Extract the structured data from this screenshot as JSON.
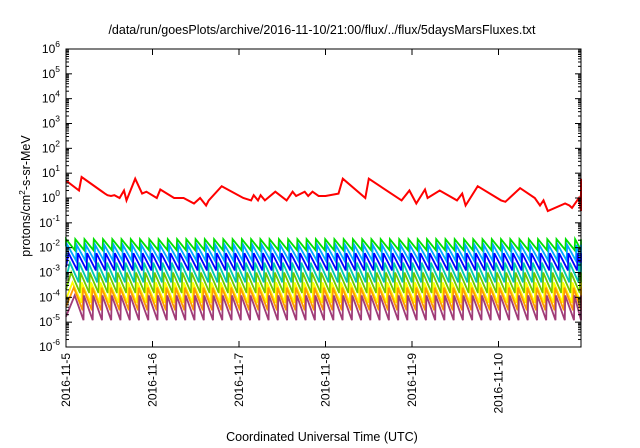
{
  "chart_data": {
    "type": "line",
    "title": "/data/run/goesPlots/archive/2016-11-10/21:00/flux/../flux/5daysMarsFluxes.txt",
    "xlabel": "Coordinated Universal Time (UTC)",
    "ylabel": "protons/cm2-s-sr-MeV",
    "ylabel_parts": {
      "pre": "protons/cm",
      "sup": "2",
      "post": "-s-sr-MeV"
    },
    "yscale": "log",
    "ylim_exp": [
      -6,
      6
    ],
    "y_ticks": [
      {
        "base": "10",
        "exp": "6"
      },
      {
        "base": "10",
        "exp": "5"
      },
      {
        "base": "10",
        "exp": "4"
      },
      {
        "base": "10",
        "exp": "3"
      },
      {
        "base": "10",
        "exp": "2"
      },
      {
        "base": "10",
        "exp": "1"
      },
      {
        "base": "10",
        "exp": "0"
      },
      {
        "base": "10",
        "exp": "-1"
      },
      {
        "base": "10",
        "exp": "-2"
      },
      {
        "base": "10",
        "exp": "-3"
      },
      {
        "base": "10",
        "exp": "-4"
      },
      {
        "base": "10",
        "exp": "-5"
      },
      {
        "base": "10",
        "exp": "-6"
      }
    ],
    "x_ticks": [
      "2016-11-5",
      "2016-11-6",
      "2016-11-7",
      "2016-11-8",
      "2016-11-9",
      "2016-11-10"
    ],
    "x_day_range": [
      0,
      6.3
    ],
    "grid": false,
    "legend": "none",
    "series": [
      {
        "color": "#ff0000",
        "t": [
          0,
          0.15,
          0.18,
          0.4,
          0.45,
          0.48,
          0.52,
          0.56,
          0.62,
          0.67,
          0.7,
          0.8,
          0.88,
          0.93,
          1.05,
          1.09,
          1.25,
          1.36,
          1.48,
          1.55,
          1.62,
          1.65,
          1.8,
          2.05,
          2.14,
          2.17,
          2.22,
          2.25,
          2.3,
          2.42,
          2.55,
          2.62,
          2.66,
          2.76,
          2.8,
          2.85,
          2.92,
          3.0,
          3.15,
          3.2,
          3.46,
          3.5,
          3.88,
          3.97,
          4.05,
          4.15,
          4.18,
          4.32,
          4.52,
          4.58,
          4.62,
          4.76,
          5.03,
          5.08,
          5.25,
          5.42,
          5.48,
          5.52,
          5.57,
          5.77,
          5.82,
          5.85,
          5.93,
          6.0,
          6.05,
          6.1,
          6.2,
          6.3
        ],
        "y": [
          5,
          2,
          7,
          2,
          1.5,
          1.3,
          1.2,
          1.3,
          1,
          2,
          0.8,
          6,
          1.5,
          1.8,
          1,
          2.2,
          1,
          1,
          0.6,
          1,
          0.5,
          0.8,
          3,
          1,
          0.8,
          1.3,
          0.8,
          1.3,
          0.8,
          1.8,
          0.8,
          1.8,
          1.2,
          1.8,
          1.2,
          1.8,
          1.2,
          1.2,
          1.5,
          6,
          1,
          6,
          0.8,
          2,
          0.6,
          2.2,
          1,
          2,
          0.8,
          1.5,
          0.5,
          3,
          0.8,
          0.7,
          2.5,
          1,
          0.5,
          0.8,
          0.3,
          0.6,
          0.5,
          0.4,
          1,
          0.3,
          1.5,
          1.2,
          6,
          4.5
        ]
      },
      {
        "color": "#00e000",
        "lo": 0.008,
        "hi": 0.022,
        "period": 0.107,
        "phase": 0.0
      },
      {
        "color": "#00a8ff",
        "lo": 0.003,
        "hi": 0.013,
        "period": 0.107,
        "phase": 0.015
      },
      {
        "color": "#0000ff",
        "lo": 0.0012,
        "hi": 0.006,
        "period": 0.107,
        "phase": 0.03
      },
      {
        "color": "#00c8b0",
        "lo": 0.0004,
        "hi": 0.0025,
        "period": 0.107,
        "phase": 0.045
      },
      {
        "color": "#6ec800",
        "lo": 0.00015,
        "hi": 0.001,
        "period": 0.107,
        "phase": 0.06
      },
      {
        "color": "#ffff00",
        "lo": 6e-05,
        "hi": 0.0004,
        "period": 0.107,
        "phase": 0.075
      },
      {
        "color": "#ff9a00",
        "lo": 3e-05,
        "hi": 0.00025,
        "period": 0.107,
        "phase": 0.09
      },
      {
        "color": "#a03c78",
        "lo": 1.2e-05,
        "hi": 0.00012,
        "period": 0.107,
        "phase": 0.1
      }
    ]
  }
}
